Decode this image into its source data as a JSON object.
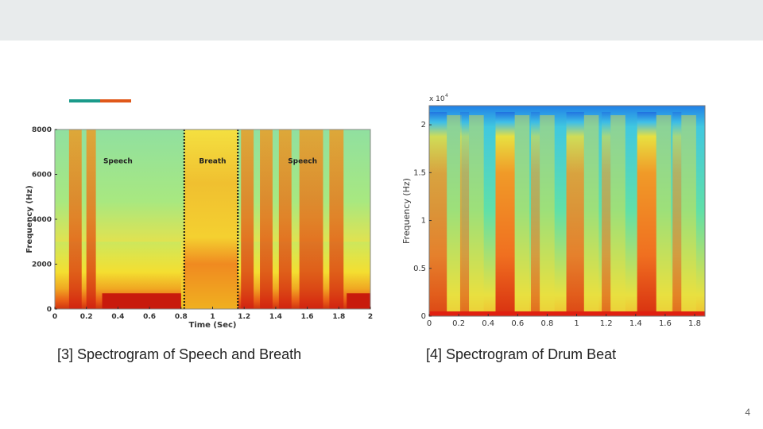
{
  "slide": {
    "page_number": "4",
    "accent_colors": [
      "#1a9a8a",
      "#e0581a"
    ],
    "captions": [
      "[3] Spectrogram of Speech and Breath",
      "[4] Spectrogram of Drum Beat"
    ]
  },
  "chart_data": [
    {
      "type": "heatmap",
      "title": "",
      "xlabel": "Time (Sec)",
      "ylabel": "Frequency (Hz)",
      "xlim": [
        0,
        2
      ],
      "ylim": [
        0,
        8000
      ],
      "xticks": [
        "0",
        "0.2",
        "0.4",
        "0.6",
        "0.8",
        "1",
        "1.2",
        "1.4",
        "1.6",
        "1.8",
        "2"
      ],
      "yticks": [
        "0",
        "2000",
        "4000",
        "6000",
        "8000"
      ],
      "annotations": [
        {
          "text": "Speech",
          "x": 0.4,
          "y": 6500
        },
        {
          "text": "Breath",
          "x": 1.0,
          "y": 6500
        },
        {
          "text": "Speech",
          "x": 1.57,
          "y": 6500
        }
      ],
      "boundaries": [
        0.82,
        1.16
      ]
    },
    {
      "type": "heatmap",
      "title": "",
      "xlabel": "",
      "ylabel": "Frequency (Hz)",
      "y_multiplier": "x 10",
      "y_multiplier_exp": "4",
      "xlim": [
        0,
        1.87
      ],
      "ylim": [
        0,
        2.2
      ],
      "xticks": [
        "0",
        "0.2",
        "0.4",
        "0.6",
        "0.8",
        "1",
        "1.2",
        "1.4",
        "1.6",
        "1.8"
      ],
      "yticks": [
        "0",
        "0.5",
        "1",
        "1.5",
        "2"
      ],
      "beat_onsets": [
        0,
        0.21,
        0.45,
        0.69,
        0.93,
        1.17,
        1.41,
        1.65
      ]
    }
  ]
}
